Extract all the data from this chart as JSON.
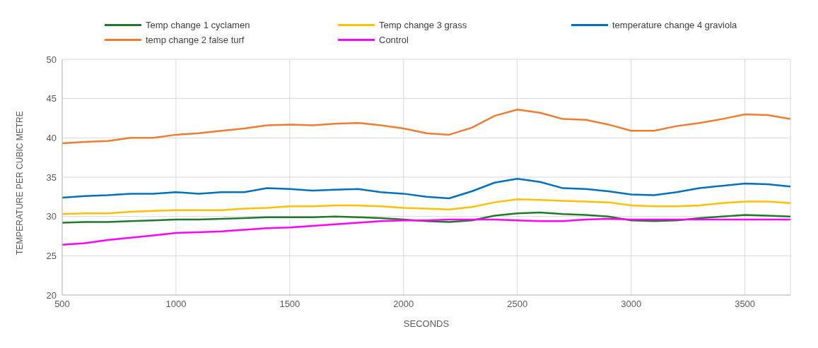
{
  "chart_data": {
    "type": "line",
    "xlabel": "SECONDS",
    "ylabel": "TEMPERATURE PER CUBIC METRE",
    "x": [
      500,
      600,
      700,
      800,
      900,
      1000,
      1100,
      1200,
      1300,
      1400,
      1500,
      1600,
      1700,
      1800,
      1900,
      2000,
      2100,
      2200,
      2300,
      2400,
      2500,
      2600,
      2700,
      2800,
      2900,
      3000,
      3100,
      3200,
      3300,
      3400,
      3500,
      3600,
      3700
    ],
    "series": [
      {
        "name": "Temp change 1 cyclamen",
        "color": "#217a2c",
        "values": [
          29.2,
          29.3,
          29.3,
          29.4,
          29.5,
          29.6,
          29.6,
          29.7,
          29.8,
          29.9,
          29.9,
          29.9,
          30.0,
          29.9,
          29.8,
          29.6,
          29.4,
          29.3,
          29.5,
          30.1,
          30.4,
          30.5,
          30.3,
          30.2,
          30.0,
          29.5,
          29.4,
          29.5,
          29.8,
          30.0,
          30.2,
          30.1,
          30.0
        ]
      },
      {
        "name": "Temp change 3 grass",
        "color": "#ffc000",
        "values": [
          30.3,
          30.4,
          30.4,
          30.6,
          30.7,
          30.8,
          30.8,
          30.8,
          31.0,
          31.1,
          31.3,
          31.3,
          31.4,
          31.4,
          31.3,
          31.1,
          31.0,
          30.9,
          31.2,
          31.8,
          32.2,
          32.1,
          32.0,
          31.9,
          31.8,
          31.4,
          31.3,
          31.3,
          31.4,
          31.7,
          31.9,
          31.9,
          31.7
        ]
      },
      {
        "name": "temperature change 4 graviola",
        "color": "#0070c0",
        "values": [
          32.4,
          32.6,
          32.7,
          32.9,
          32.9,
          33.1,
          32.9,
          33.1,
          33.1,
          33.6,
          33.5,
          33.3,
          33.4,
          33.5,
          33.1,
          32.9,
          32.5,
          32.3,
          33.2,
          34.3,
          34.8,
          34.4,
          33.6,
          33.5,
          33.2,
          32.8,
          32.7,
          33.1,
          33.6,
          33.9,
          34.2,
          34.1,
          33.8
        ]
      },
      {
        "name": "temp change 2 false turf",
        "color": "#ed7d31",
        "values": [
          39.3,
          39.5,
          39.6,
          40.0,
          40.0,
          40.4,
          40.6,
          40.9,
          41.2,
          41.6,
          41.7,
          41.6,
          41.8,
          41.9,
          41.6,
          41.2,
          40.6,
          40.4,
          41.3,
          42.8,
          43.6,
          43.2,
          42.4,
          42.3,
          41.7,
          40.9,
          40.9,
          41.5,
          41.9,
          42.4,
          43.0,
          42.9,
          42.4
        ]
      },
      {
        "name": "Control",
        "color": "#ff00ff",
        "values": [
          26.4,
          26.6,
          27.0,
          27.3,
          27.6,
          27.9,
          28.0,
          28.1,
          28.3,
          28.5,
          28.6,
          28.8,
          29.0,
          29.2,
          29.4,
          29.5,
          29.5,
          29.6,
          29.6,
          29.6,
          29.5,
          29.4,
          29.4,
          29.6,
          29.7,
          29.6,
          29.6,
          29.6,
          29.6,
          29.6,
          29.6,
          29.6,
          29.6
        ]
      }
    ],
    "xlim": [
      500,
      3700
    ],
    "xticks": [
      500,
      1000,
      1500,
      2000,
      2500,
      3000,
      3500
    ],
    "ylim": [
      20,
      50
    ],
    "yticks": [
      20,
      25,
      30,
      35,
      40,
      45,
      50
    ],
    "grid": true,
    "legend": "top",
    "marker": "none",
    "line_style": "solid"
  }
}
